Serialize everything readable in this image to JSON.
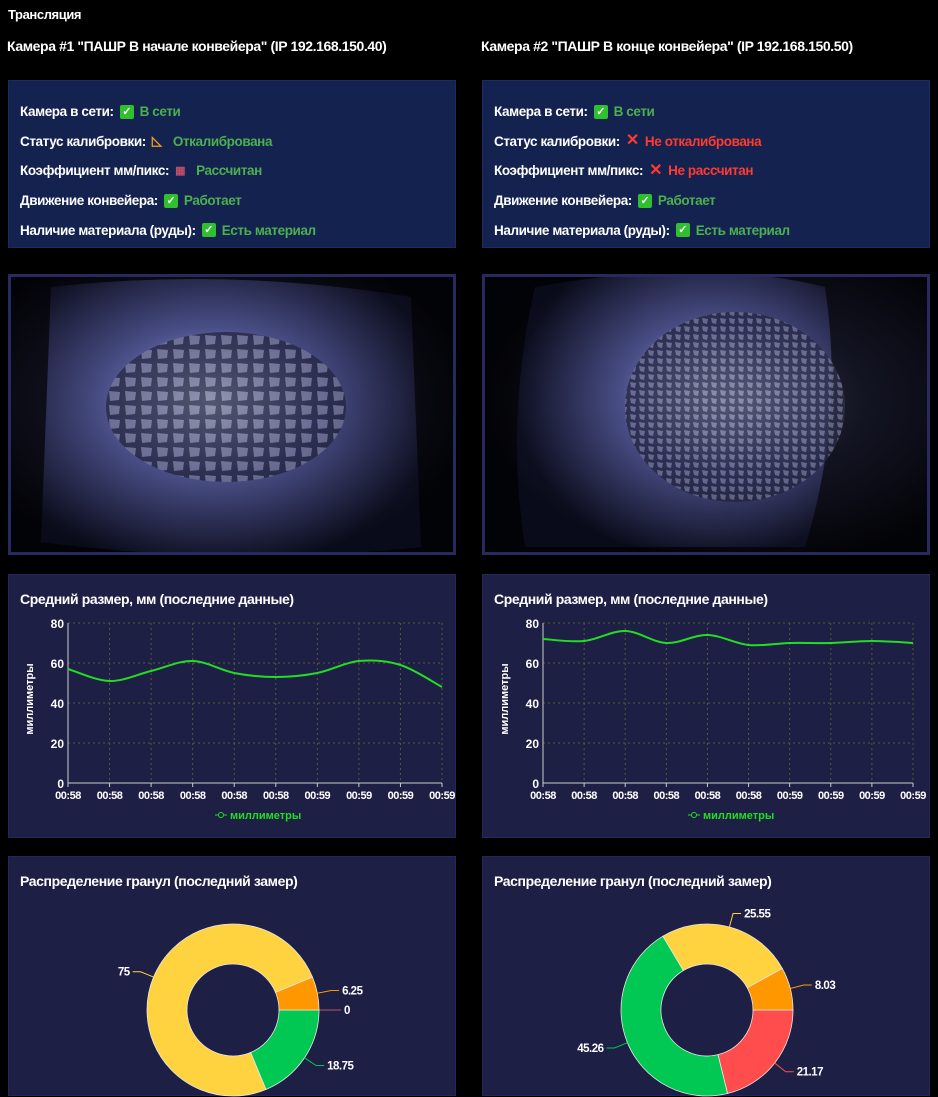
{
  "page_title": "Трансляция",
  "colors": {
    "ok": "#4caf50",
    "bad": "#ff3b30",
    "line": "#22dd22",
    "yellow": "#ffd23f",
    "orange": "#ff9800",
    "red": "#ff4d4d",
    "green": "#00c853"
  },
  "cameras": [
    {
      "header": "Камера #1 \"ПАШР В начале конвейера\" (IP 192.168.150.40)",
      "status": [
        {
          "label": "Камера в сети:",
          "icon": "check-icon",
          "value": "В сети",
          "state": "ok"
        },
        {
          "label": "Статус калибровки:",
          "icon": "triangle-ruler-icon",
          "value": "Откалибрована",
          "state": "ok"
        },
        {
          "label": "Коэффициент мм/пикс:",
          "icon": "abacus-icon",
          "value": "Рассчитан",
          "state": "ok"
        },
        {
          "label": "Движение конвейера:",
          "icon": "check-icon",
          "value": "Работает",
          "state": "ok"
        },
        {
          "label": "Наличие материала (руды):",
          "icon": "check-icon",
          "value": "Есть материал",
          "state": "ok"
        }
      ]
    },
    {
      "header": "Камера #2 \"ПАШР В конце конвейера\" (IP 192.168.150.50)",
      "status": [
        {
          "label": "Камера в сети:",
          "icon": "check-icon",
          "value": "В сети",
          "state": "ok"
        },
        {
          "label": "Статус калибровки:",
          "icon": "cross-icon",
          "value": "Не откалибрована",
          "state": "bad"
        },
        {
          "label": "Коэффициент мм/пикс:",
          "icon": "cross-icon",
          "value": "Не рассчитан",
          "state": "bad"
        },
        {
          "label": "Движение конвейера:",
          "icon": "check-icon",
          "value": "Работает",
          "state": "ok"
        },
        {
          "label": "Наличие материала (руды):",
          "icon": "check-icon",
          "value": "Есть материал",
          "state": "ok"
        }
      ]
    }
  ],
  "chart_data": [
    {
      "type": "line",
      "title": "Средний размер, мм (последние данные)",
      "ylabel": "миллиметры",
      "legend": "миллиметры",
      "legend_position": "bottom",
      "ylim": [
        0,
        80
      ],
      "yticks": [
        0,
        20,
        40,
        60,
        80
      ],
      "x": [
        "00:58",
        "00:58",
        "00:58",
        "00:58",
        "00:58",
        "00:58",
        "00:59",
        "00:59",
        "00:59",
        "00:59"
      ],
      "values": [
        57,
        51,
        56,
        61,
        55,
        53,
        55,
        61,
        59,
        48
      ]
    },
    {
      "type": "line",
      "title": "Средний размер, мм (последние данные)",
      "ylabel": "миллиметры",
      "legend": "миллиметры",
      "legend_position": "bottom",
      "ylim": [
        0,
        80
      ],
      "yticks": [
        0,
        20,
        40,
        60,
        80
      ],
      "x": [
        "00:58",
        "00:58",
        "00:58",
        "00:58",
        "00:58",
        "00:58",
        "00:59",
        "00:59",
        "00:59",
        "00:59"
      ],
      "values": [
        72,
        71,
        76,
        70,
        74,
        69,
        70,
        70,
        71,
        70
      ]
    },
    {
      "type": "pie",
      "title": "Распределение гранул (последний замер)",
      "slices": [
        {
          "value": 0,
          "color": "#ff4d4d"
        },
        {
          "value": 18.75,
          "color": "#00c853"
        },
        {
          "value": 75,
          "color": "#ffd23f"
        },
        {
          "value": 6.25,
          "color": "#ff9800"
        }
      ]
    },
    {
      "type": "pie",
      "title": "Распределение гранул (последний замер)",
      "slices": [
        {
          "value": 21.17,
          "color": "#ff4d4d"
        },
        {
          "value": 45.26,
          "color": "#00c853"
        },
        {
          "value": 25.55,
          "color": "#ffd23f"
        },
        {
          "value": 8.03,
          "color": "#ff9800"
        }
      ]
    }
  ]
}
